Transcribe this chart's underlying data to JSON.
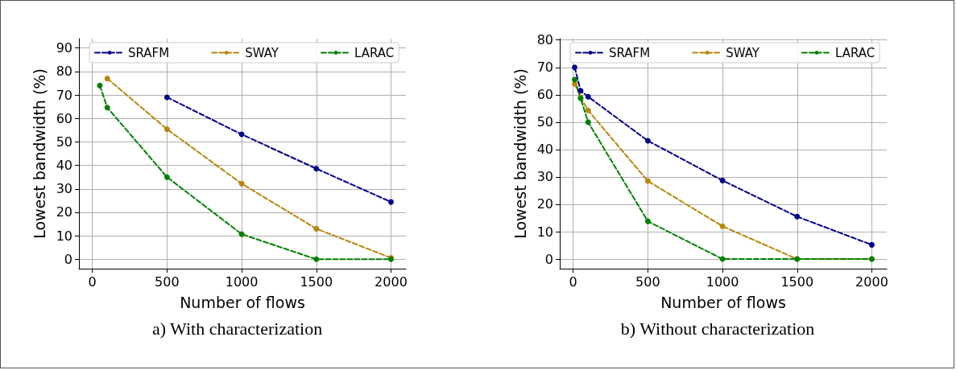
{
  "chart_data": [
    {
      "type": "line",
      "title": "a) With characterization",
      "xlabel": "Number of flows",
      "ylabel": "Lowest bandwidth (%)",
      "x": [
        50,
        100,
        500,
        1000,
        1500,
        2000
      ],
      "series": [
        {
          "name": "SRAFM",
          "color": "#00008b",
          "values": [
            null,
            null,
            69,
            53.2,
            38.6,
            24.4
          ]
        },
        {
          "name": "SWAY",
          "color": "#b8860b",
          "values": [
            null,
            77,
            55.4,
            32.2,
            13,
            0.6
          ]
        },
        {
          "name": "LARAC",
          "color": "#008000",
          "values": [
            74,
            64.6,
            35,
            10.7,
            0,
            0
          ]
        }
      ],
      "xlim": [
        -90,
        2100
      ],
      "xticks": [
        0,
        500,
        1000,
        1500,
        2000
      ],
      "ylim": [
        -4,
        94
      ],
      "yticks": [
        0,
        10,
        20,
        30,
        40,
        50,
        60,
        70,
        80,
        90
      ],
      "grid": true,
      "legend": "top",
      "marker": "circle",
      "line_style": "dashed"
    },
    {
      "type": "line",
      "title": "b) Without characterization",
      "xlabel": "Number of flows",
      "ylabel": "Lowest bandwidth (%)",
      "x": [
        10,
        50,
        100,
        500,
        1000,
        1500,
        2000
      ],
      "series": [
        {
          "name": "SRAFM",
          "color": "#00008b",
          "values": [
            70,
            61.5,
            59.3,
            43.2,
            28.7,
            15.5,
            5.2
          ]
        },
        {
          "name": "SWAY",
          "color": "#b8860b",
          "values": [
            64,
            59,
            54.3,
            28.5,
            12,
            0,
            0
          ]
        },
        {
          "name": "LARAC",
          "color": "#008000",
          "values": [
            65.5,
            58.7,
            50,
            13.8,
            0,
            0,
            0
          ]
        }
      ],
      "xlim": [
        -90,
        2100
      ],
      "xticks": [
        0,
        500,
        1000,
        1500,
        2000
      ],
      "ylim": [
        -3.5,
        80.5
      ],
      "yticks": [
        0,
        10,
        20,
        30,
        40,
        50,
        60,
        70,
        80
      ],
      "grid": true,
      "legend": "top",
      "marker": "circle",
      "line_style": "dashed"
    }
  ]
}
